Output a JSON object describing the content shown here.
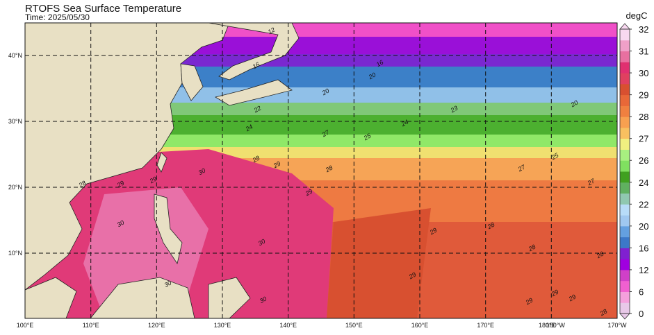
{
  "title": "RTOFS Sea Surface Temperature",
  "subtitle": "Time: 2025/05/30",
  "lon_labels": [
    "100°E",
    "110°E",
    "120°E",
    "130°E",
    "140°E",
    "150°E",
    "160°E",
    "170°E",
    "180°E",
    "180°W",
    "170°W"
  ],
  "lat_labels": [
    "40°N",
    "30°N",
    "20°N",
    "10°N"
  ],
  "colorbar": {
    "unit": "degC",
    "ticks": [
      0,
      6,
      12,
      16,
      20,
      22,
      24,
      26,
      27,
      28,
      29,
      30,
      31,
      32
    ],
    "colors": [
      "#e8c8e8",
      "#f4a0dc",
      "#f060d0",
      "#d040c8",
      "#a000e0",
      "#8020d0",
      "#3c78c8",
      "#64a0e0",
      "#a0c8f0",
      "#b8dcf8",
      "#90c8b0",
      "#60b060",
      "#40a020",
      "#80e060",
      "#a8f080",
      "#f0f080",
      "#f8c060",
      "#f8a050",
      "#f08040",
      "#e86838",
      "#d85030",
      "#e04060",
      "#e03070",
      "#e870a0",
      "#f0a0c8",
      "#f8d8f0"
    ]
  },
  "contour_labels": [
    12,
    16,
    16,
    20,
    20,
    20,
    22,
    23,
    24,
    24,
    27,
    25,
    28,
    29,
    28,
    30,
    29,
    29,
    29,
    28,
    30,
    29,
    28,
    30,
    28,
    29,
    29,
    30,
    28,
    28,
    29,
    29,
    30,
    25,
    27,
    27
  ]
}
